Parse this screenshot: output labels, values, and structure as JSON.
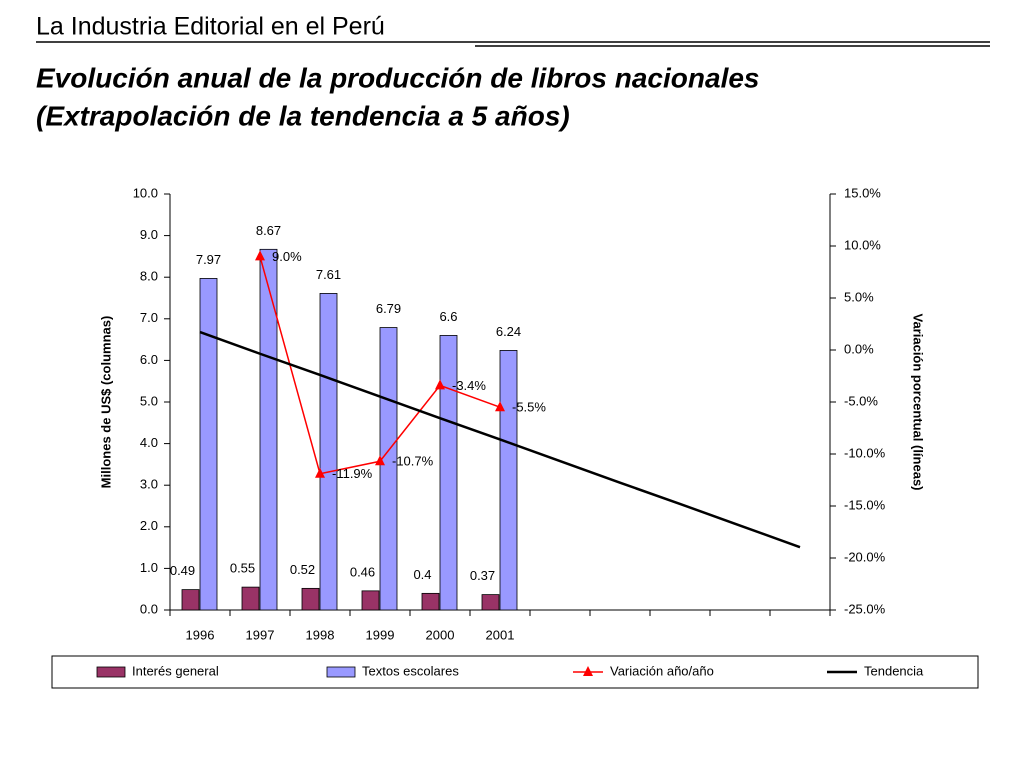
{
  "header": {
    "title": "La Industria Editorial en el Perú"
  },
  "chart_data": {
    "type": "bar",
    "title": "Evolución anual de la producción de libros nacionales",
    "subtitle": "(Extrapolación de la tendencia a 5 años)",
    "y_label": "Millones de US$ (columnas)",
    "y2_label": "Variación porcentual (líneas)",
    "categories": [
      "1996",
      "1997",
      "1998",
      "1999",
      "2000",
      "2001",
      null,
      null,
      null,
      null,
      null
    ],
    "ylim": [
      0,
      10
    ],
    "yticks": [
      {
        "value": 0,
        "label": "0.0"
      },
      {
        "value": 1,
        "label": "1.0"
      },
      {
        "value": 2,
        "label": "2.0"
      },
      {
        "value": 3,
        "label": "3.0"
      },
      {
        "value": 4,
        "label": "4.0"
      },
      {
        "value": 5,
        "label": "5.0"
      },
      {
        "value": 6,
        "label": "6.0"
      },
      {
        "value": 7,
        "label": "7.0"
      },
      {
        "value": 8,
        "label": "8.0"
      },
      {
        "value": 9,
        "label": "9.0"
      },
      {
        "value": 10,
        "label": "10.0"
      }
    ],
    "y2lim": [
      -25,
      15
    ],
    "y2ticks": [
      {
        "value": -25,
        "label": "-25.0%"
      },
      {
        "value": -20,
        "label": "-20.0%"
      },
      {
        "value": -15,
        "label": "-15.0%"
      },
      {
        "value": -10,
        "label": "-10.0%"
      },
      {
        "value": -5,
        "label": "-5.0%"
      },
      {
        "value": 0,
        "label": "0.0%"
      },
      {
        "value": 5,
        "label": "5.0%"
      },
      {
        "value": 10,
        "label": "10.0%"
      },
      {
        "value": 15,
        "label": "15.0%"
      }
    ],
    "legend": "bottom",
    "series": [
      {
        "name": "Interés general",
        "type": "bar",
        "color": "#993366",
        "values": [
          0.49,
          0.55,
          0.52,
          0.46,
          0.4,
          0.37,
          null,
          null,
          null,
          null,
          null
        ]
      },
      {
        "name": "Textos escolares",
        "type": "bar",
        "color": "#9999ff",
        "values": [
          7.97,
          8.67,
          7.61,
          6.79,
          6.6,
          6.24,
          null,
          null,
          null,
          null,
          null
        ]
      },
      {
        "name": "Variación año/año",
        "type": "line",
        "axis": "y2",
        "color": "#ff0000",
        "marker": "triangle",
        "values": [
          null,
          9.0,
          -11.9,
          -10.7,
          -3.4,
          -5.5,
          null,
          null,
          null,
          null,
          null
        ],
        "value_labels": [
          null,
          "9.0%",
          "-11.9%",
          "-10.7%",
          "-3.4%",
          "-5.5%",
          null,
          null,
          null,
          null,
          null
        ]
      },
      {
        "name": "Tendencia",
        "type": "line",
        "color": "#000000",
        "values": [
          6.68,
          6.16,
          5.65,
          5.13,
          4.61,
          4.1,
          3.58,
          3.06,
          2.55,
          2.03,
          1.51
        ]
      }
    ]
  }
}
